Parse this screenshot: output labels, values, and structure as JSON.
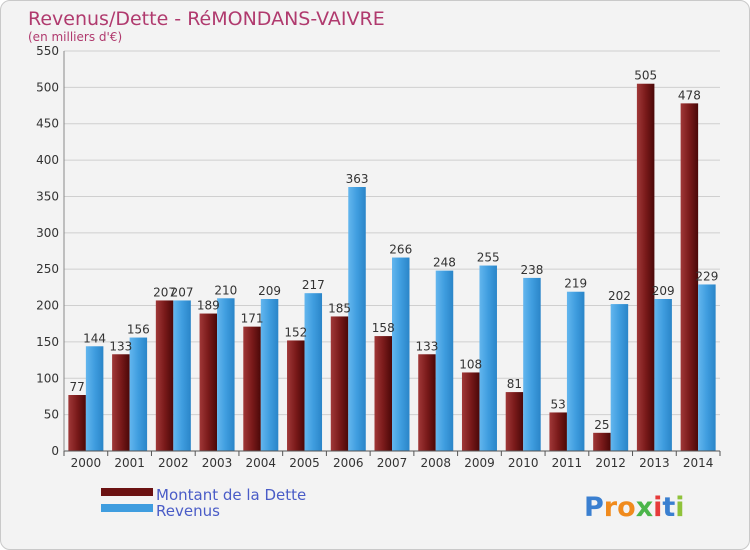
{
  "chart_data": {
    "type": "bar",
    "title": "Revenus/Dette - RéMONDANS-VAIVRE",
    "subtitle": "(en milliers d'€)",
    "categories": [
      "2000",
      "2001",
      "2002",
      "2003",
      "2004",
      "2005",
      "2006",
      "2007",
      "2008",
      "2009",
      "2010",
      "2011",
      "2012",
      "2013",
      "2014"
    ],
    "series": [
      {
        "name": "Montant de la Dette",
        "color": "#7a1818",
        "values": [
          77,
          133,
          207,
          189,
          171,
          152,
          185,
          158,
          133,
          108,
          81,
          53,
          25,
          505,
          478
        ]
      },
      {
        "name": "Revenus",
        "color": "#3f9ddf",
        "values": [
          144,
          156,
          207,
          210,
          209,
          217,
          363,
          266,
          248,
          255,
          238,
          219,
          202,
          209,
          229
        ]
      }
    ],
    "ylim": [
      0,
      550
    ],
    "yticks": [
      0,
      50,
      100,
      150,
      200,
      250,
      300,
      350,
      400,
      450,
      500,
      550
    ],
    "grid": true,
    "legend_position": "bottom-left"
  },
  "brand": {
    "letters": [
      "P",
      "r",
      "o",
      "x",
      "i",
      "t",
      "i"
    ],
    "colors": [
      "#3a7fd0",
      "#f08a1c",
      "#f08a1c",
      "#4bb54a",
      "#e63b3b",
      "#3a7fd0",
      "#8fc23a"
    ]
  }
}
